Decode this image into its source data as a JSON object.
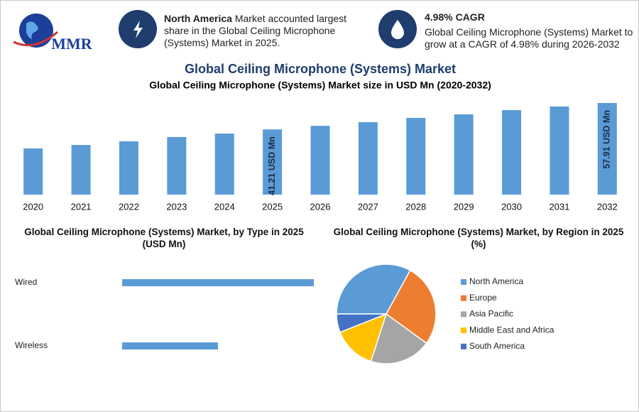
{
  "logo": {
    "text": "MMR"
  },
  "highlights": [
    {
      "title": "North America",
      "text": "Market accounted largest share in the Global Ceiling Microphone (Systems) Market in 2025."
    },
    {
      "title": "4.98% CAGR",
      "text": "Global Ceiling Microphone (Systems) Market to grow at a CAGR of 4.98% during 2026-2032"
    }
  ],
  "title": "Global Ceiling Microphone (Systems) Market",
  "chart_data": [
    {
      "type": "bar",
      "title": "Global Ceiling Microphone (Systems) Market size in USD Mn (2020-2032)",
      "categories": [
        "2020",
        "2021",
        "2022",
        "2023",
        "2024",
        "2025",
        "2026",
        "2027",
        "2028",
        "2029",
        "2030",
        "2031",
        "2032"
      ],
      "values": [
        29.2,
        31.4,
        33.7,
        36.4,
        38.6,
        41.21,
        43.5,
        45.8,
        48.5,
        50.7,
        53.4,
        55.7,
        57.91
      ],
      "value_labels": [
        null,
        null,
        null,
        null,
        null,
        "41.21 USD Mn",
        null,
        null,
        null,
        null,
        null,
        null,
        "57.91 USD Mn"
      ],
      "color": "#5b9bd5"
    },
    {
      "type": "barh",
      "title": "Global Ceiling Microphone (Systems) Market, by Type in 2025 (USD Mn)",
      "categories": [
        "Wired",
        "Wireless"
      ],
      "values": [
        27.47,
        13.74
      ],
      "color": "#5b9bd5"
    },
    {
      "type": "pie",
      "title": "Global Ceiling Microphone (Systems) Market, by Region in 2025 (%)",
      "series": [
        {
          "name": "North America",
          "color": "#5b9bd5",
          "values": [
            33
          ]
        },
        {
          "name": "Europe",
          "color": "#ed7d31",
          "values": [
            27
          ]
        },
        {
          "name": "Asia Pacific",
          "color": "#a5a5a5",
          "values": [
            20
          ]
        },
        {
          "name": "Middle East and Africa",
          "color": "#ffc000",
          "values": [
            14
          ]
        },
        {
          "name": "South America",
          "color": "#4472c4",
          "values": [
            6
          ]
        }
      ],
      "legend": "right"
    }
  ]
}
